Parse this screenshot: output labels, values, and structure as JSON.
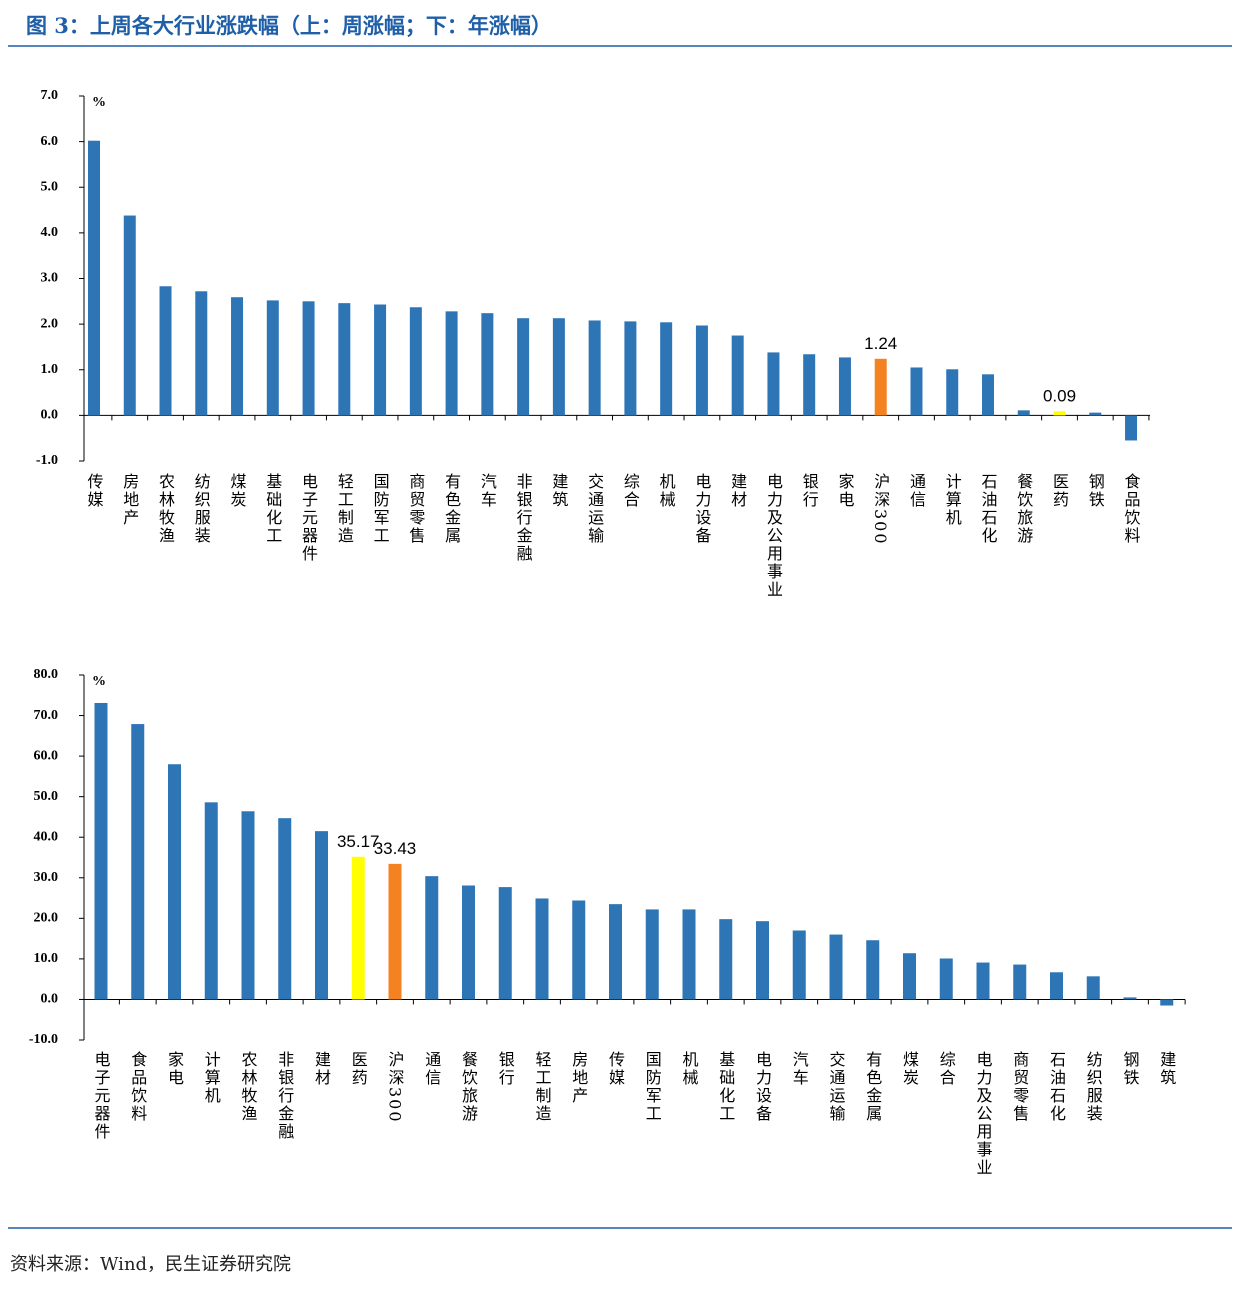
{
  "title": "图 3：上周各大行业涨跌幅（上：周涨幅；下：年涨幅）",
  "source": "资料来源：Wind，民生证券研究院",
  "chart_data": [
    {
      "type": "bar",
      "ylabel": "%",
      "categories": [
        "传媒",
        "房地产",
        "农林牧渔",
        "纺织服装",
        "煤炭",
        "基础化工",
        "电子元器件",
        "轻工制造",
        "国防军工",
        "商贸零售",
        "有色金属",
        "汽车",
        "非银行金融",
        "建筑",
        "交通运输",
        "综合",
        "机械",
        "电力设备",
        "建材",
        "电力及公用事业",
        "银行",
        "家电",
        "沪深300",
        "通信",
        "计算机",
        "石油石化",
        "餐饮旅游",
        "医药",
        "钢铁",
        "食品饮料"
      ],
      "values": [
        6.02,
        4.38,
        2.83,
        2.72,
        2.59,
        2.52,
        2.5,
        2.46,
        2.43,
        2.37,
        2.28,
        2.24,
        2.13,
        2.13,
        2.08,
        2.06,
        2.04,
        1.97,
        1.75,
        1.38,
        1.34,
        1.27,
        1.24,
        1.05,
        1.01,
        0.9,
        0.11,
        0.09,
        0.06,
        -0.55
      ],
      "value_labels": [
        null,
        null,
        null,
        null,
        null,
        null,
        null,
        null,
        null,
        null,
        null,
        null,
        null,
        null,
        null,
        null,
        null,
        null,
        null,
        null,
        null,
        null,
        "1.24",
        null,
        null,
        null,
        null,
        "0.09",
        null,
        null
      ],
      "colors": [
        "#2e75b6",
        "#2e75b6",
        "#2e75b6",
        "#2e75b6",
        "#2e75b6",
        "#2e75b6",
        "#2e75b6",
        "#2e75b6",
        "#2e75b6",
        "#2e75b6",
        "#2e75b6",
        "#2e75b6",
        "#2e75b6",
        "#2e75b6",
        "#2e75b6",
        "#2e75b6",
        "#2e75b6",
        "#2e75b6",
        "#2e75b6",
        "#2e75b6",
        "#2e75b6",
        "#2e75b6",
        "#f58220",
        "#2e75b6",
        "#2e75b6",
        "#2e75b6",
        "#2e75b6",
        "#ffff00",
        "#2e75b6",
        "#2e75b6"
      ],
      "ylim": [
        -1,
        7
      ],
      "yticks": [
        {
          "value": -1,
          "label": "-1.0"
        },
        {
          "value": 0,
          "label": "0.0"
        },
        {
          "value": 1,
          "label": "1.0"
        },
        {
          "value": 2,
          "label": "2.0"
        },
        {
          "value": 3,
          "label": "3.0"
        },
        {
          "value": 4,
          "label": "4.0"
        },
        {
          "value": 5,
          "label": "5.0"
        },
        {
          "value": 6,
          "label": "6.0"
        },
        {
          "value": 7,
          "label": "7.0"
        }
      ]
    },
    {
      "type": "bar",
      "ylabel": "%",
      "categories": [
        "电子元器件",
        "食品饮料",
        "家电",
        "计算机",
        "农林牧渔",
        "非银行金融",
        "建材",
        "医药",
        "沪深300",
        "通信",
        "餐饮旅游",
        "银行",
        "轻工制造",
        "房地产",
        "传媒",
        "国防军工",
        "机械",
        "基础化工",
        "电力设备",
        "汽车",
        "交通运输",
        "有色金属",
        "煤炭",
        "综合",
        "电力及公用事业",
        "商贸零售",
        "石油石化",
        "纺织服装",
        "钢铁",
        "建筑"
      ],
      "values": [
        73.1,
        67.9,
        58.0,
        48.6,
        46.4,
        44.7,
        41.5,
        35.17,
        33.43,
        30.4,
        28.1,
        27.7,
        24.9,
        24.4,
        23.5,
        22.2,
        22.2,
        19.8,
        19.3,
        17.0,
        16.0,
        14.6,
        11.4,
        10.1,
        9.1,
        8.6,
        6.7,
        5.7,
        0.5,
        -1.5
      ],
      "value_labels": [
        null,
        null,
        null,
        null,
        null,
        null,
        null,
        "35.17",
        "33.43",
        null,
        null,
        null,
        null,
        null,
        null,
        null,
        null,
        null,
        null,
        null,
        null,
        null,
        null,
        null,
        null,
        null,
        null,
        null,
        null,
        null
      ],
      "colors": [
        "#2e75b6",
        "#2e75b6",
        "#2e75b6",
        "#2e75b6",
        "#2e75b6",
        "#2e75b6",
        "#2e75b6",
        "#ffff00",
        "#f58220",
        "#2e75b6",
        "#2e75b6",
        "#2e75b6",
        "#2e75b6",
        "#2e75b6",
        "#2e75b6",
        "#2e75b6",
        "#2e75b6",
        "#2e75b6",
        "#2e75b6",
        "#2e75b6",
        "#2e75b6",
        "#2e75b6",
        "#2e75b6",
        "#2e75b6",
        "#2e75b6",
        "#2e75b6",
        "#2e75b6",
        "#2e75b6",
        "#2e75b6",
        "#2e75b6"
      ],
      "ylim": [
        -10,
        80
      ],
      "yticks": [
        {
          "value": -10,
          "label": "-10.0"
        },
        {
          "value": 0,
          "label": "0.0"
        },
        {
          "value": 10,
          "label": "10.0"
        },
        {
          "value": 20,
          "label": "20.0"
        },
        {
          "value": 30,
          "label": "30.0"
        },
        {
          "value": 40,
          "label": "40.0"
        },
        {
          "value": 50,
          "label": "50.0"
        },
        {
          "value": 60,
          "label": "60.0"
        },
        {
          "value": 70,
          "label": "70.0"
        },
        {
          "value": 80,
          "label": "80.0"
        }
      ]
    }
  ]
}
